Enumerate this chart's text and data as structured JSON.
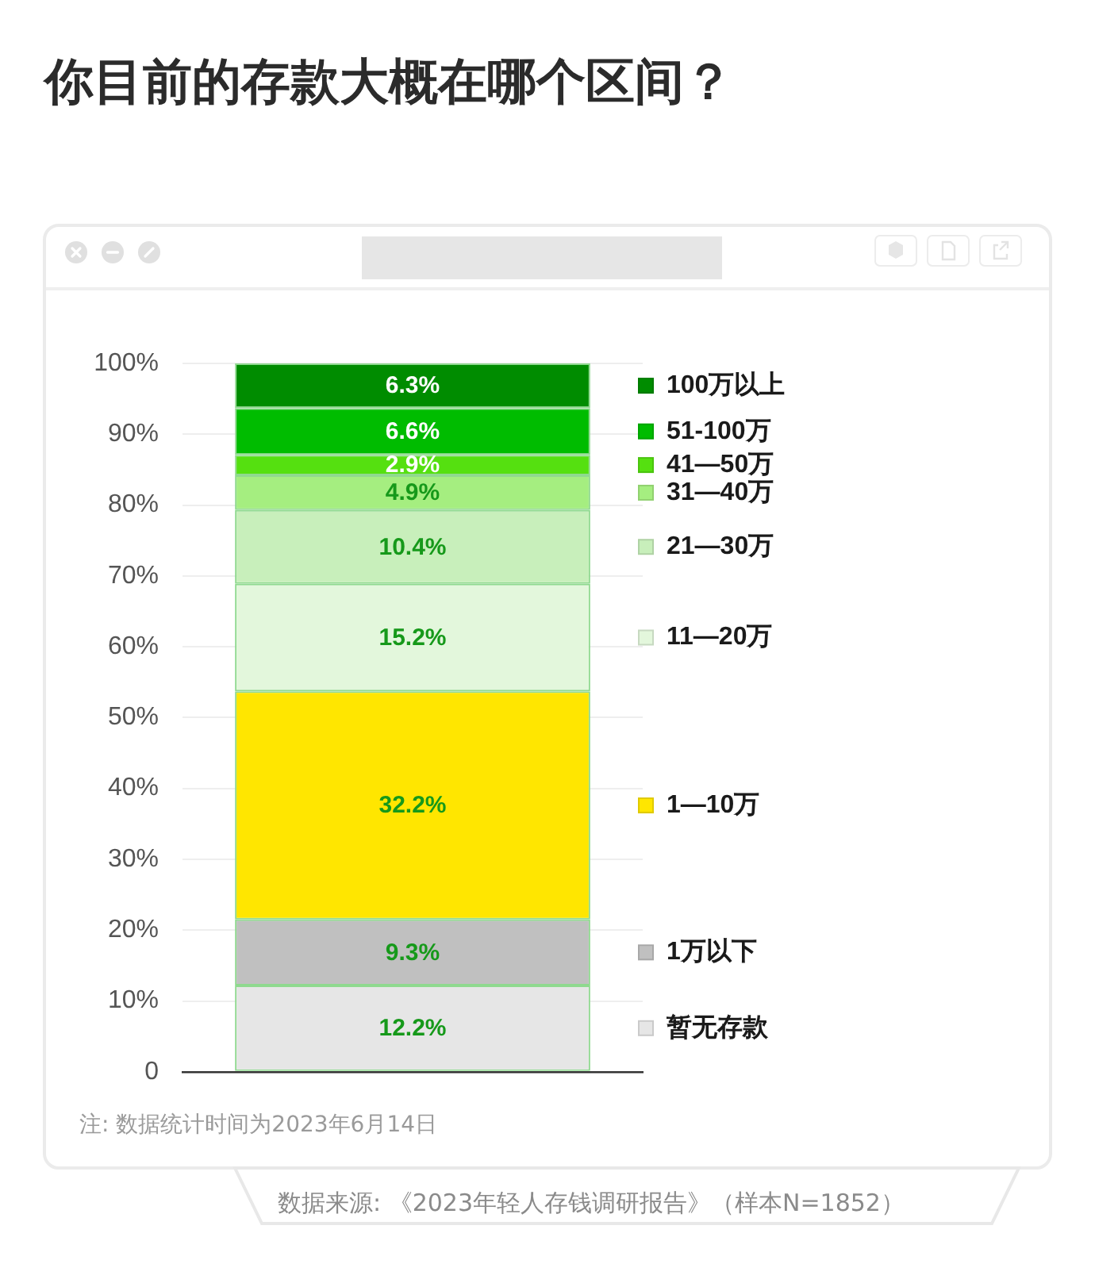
{
  "chart_data": {
    "type": "bar",
    "stacked": true,
    "title": "你目前的存款大概在哪个区间？",
    "categories": [
      null
    ],
    "series": [
      {
        "name": "暂无存款",
        "color": "#e6e6e6",
        "values": [
          12.2
        ],
        "value_labels": [
          "12.2%"
        ]
      },
      {
        "name": "1万以下",
        "color": "#c0c0c0",
        "values": [
          9.3
        ],
        "value_labels": [
          "9.3%"
        ]
      },
      {
        "name": "1—10万",
        "color": "#ffe600",
        "values": [
          32.2
        ],
        "value_labels": [
          "32.2%"
        ]
      },
      {
        "name": "11—20万",
        "color": "#e3f7dc",
        "values": [
          15.2
        ],
        "value_labels": [
          "15.2%"
        ]
      },
      {
        "name": "21—30万",
        "color": "#c8efbb",
        "values": [
          10.4
        ],
        "value_labels": [
          "10.4%"
        ]
      },
      {
        "name": "31—40万",
        "color": "#a5ee80",
        "values": [
          4.9
        ],
        "value_labels": [
          "4.9%"
        ]
      },
      {
        "name": "41—50万",
        "color": "#55e010",
        "values": [
          2.9
        ],
        "value_labels": [
          "2.9%"
        ]
      },
      {
        "name": "51-100万",
        "color": "#00bc00",
        "values": [
          6.6
        ],
        "value_labels": [
          "6.6%"
        ]
      },
      {
        "name": "100万以上",
        "color": "#008c00",
        "values": [
          6.3
        ],
        "value_labels": [
          "6.3%"
        ]
      }
    ],
    "ylim": [
      0,
      100
    ],
    "yticks": [
      0,
      {
        "value": 10,
        "label": "10%"
      },
      {
        "value": 20,
        "label": "20%"
      },
      {
        "value": 30,
        "label": "30%"
      },
      {
        "value": 40,
        "label": "40%"
      },
      {
        "value": 50,
        "label": "50%"
      },
      {
        "value": 60,
        "label": "60%"
      },
      {
        "value": 70,
        "label": "70%"
      },
      {
        "value": 80,
        "label": "80%"
      },
      {
        "value": 90,
        "label": "90%"
      },
      {
        "value": 100,
        "label": "100%"
      }
    ],
    "grid": "y",
    "legend": "right",
    "annotations": [
      "注: 数据统计时间为2023年6月14日",
      "数据来源: 《2023年轻人存钱调研报告》（样本N=1852）"
    ]
  }
}
